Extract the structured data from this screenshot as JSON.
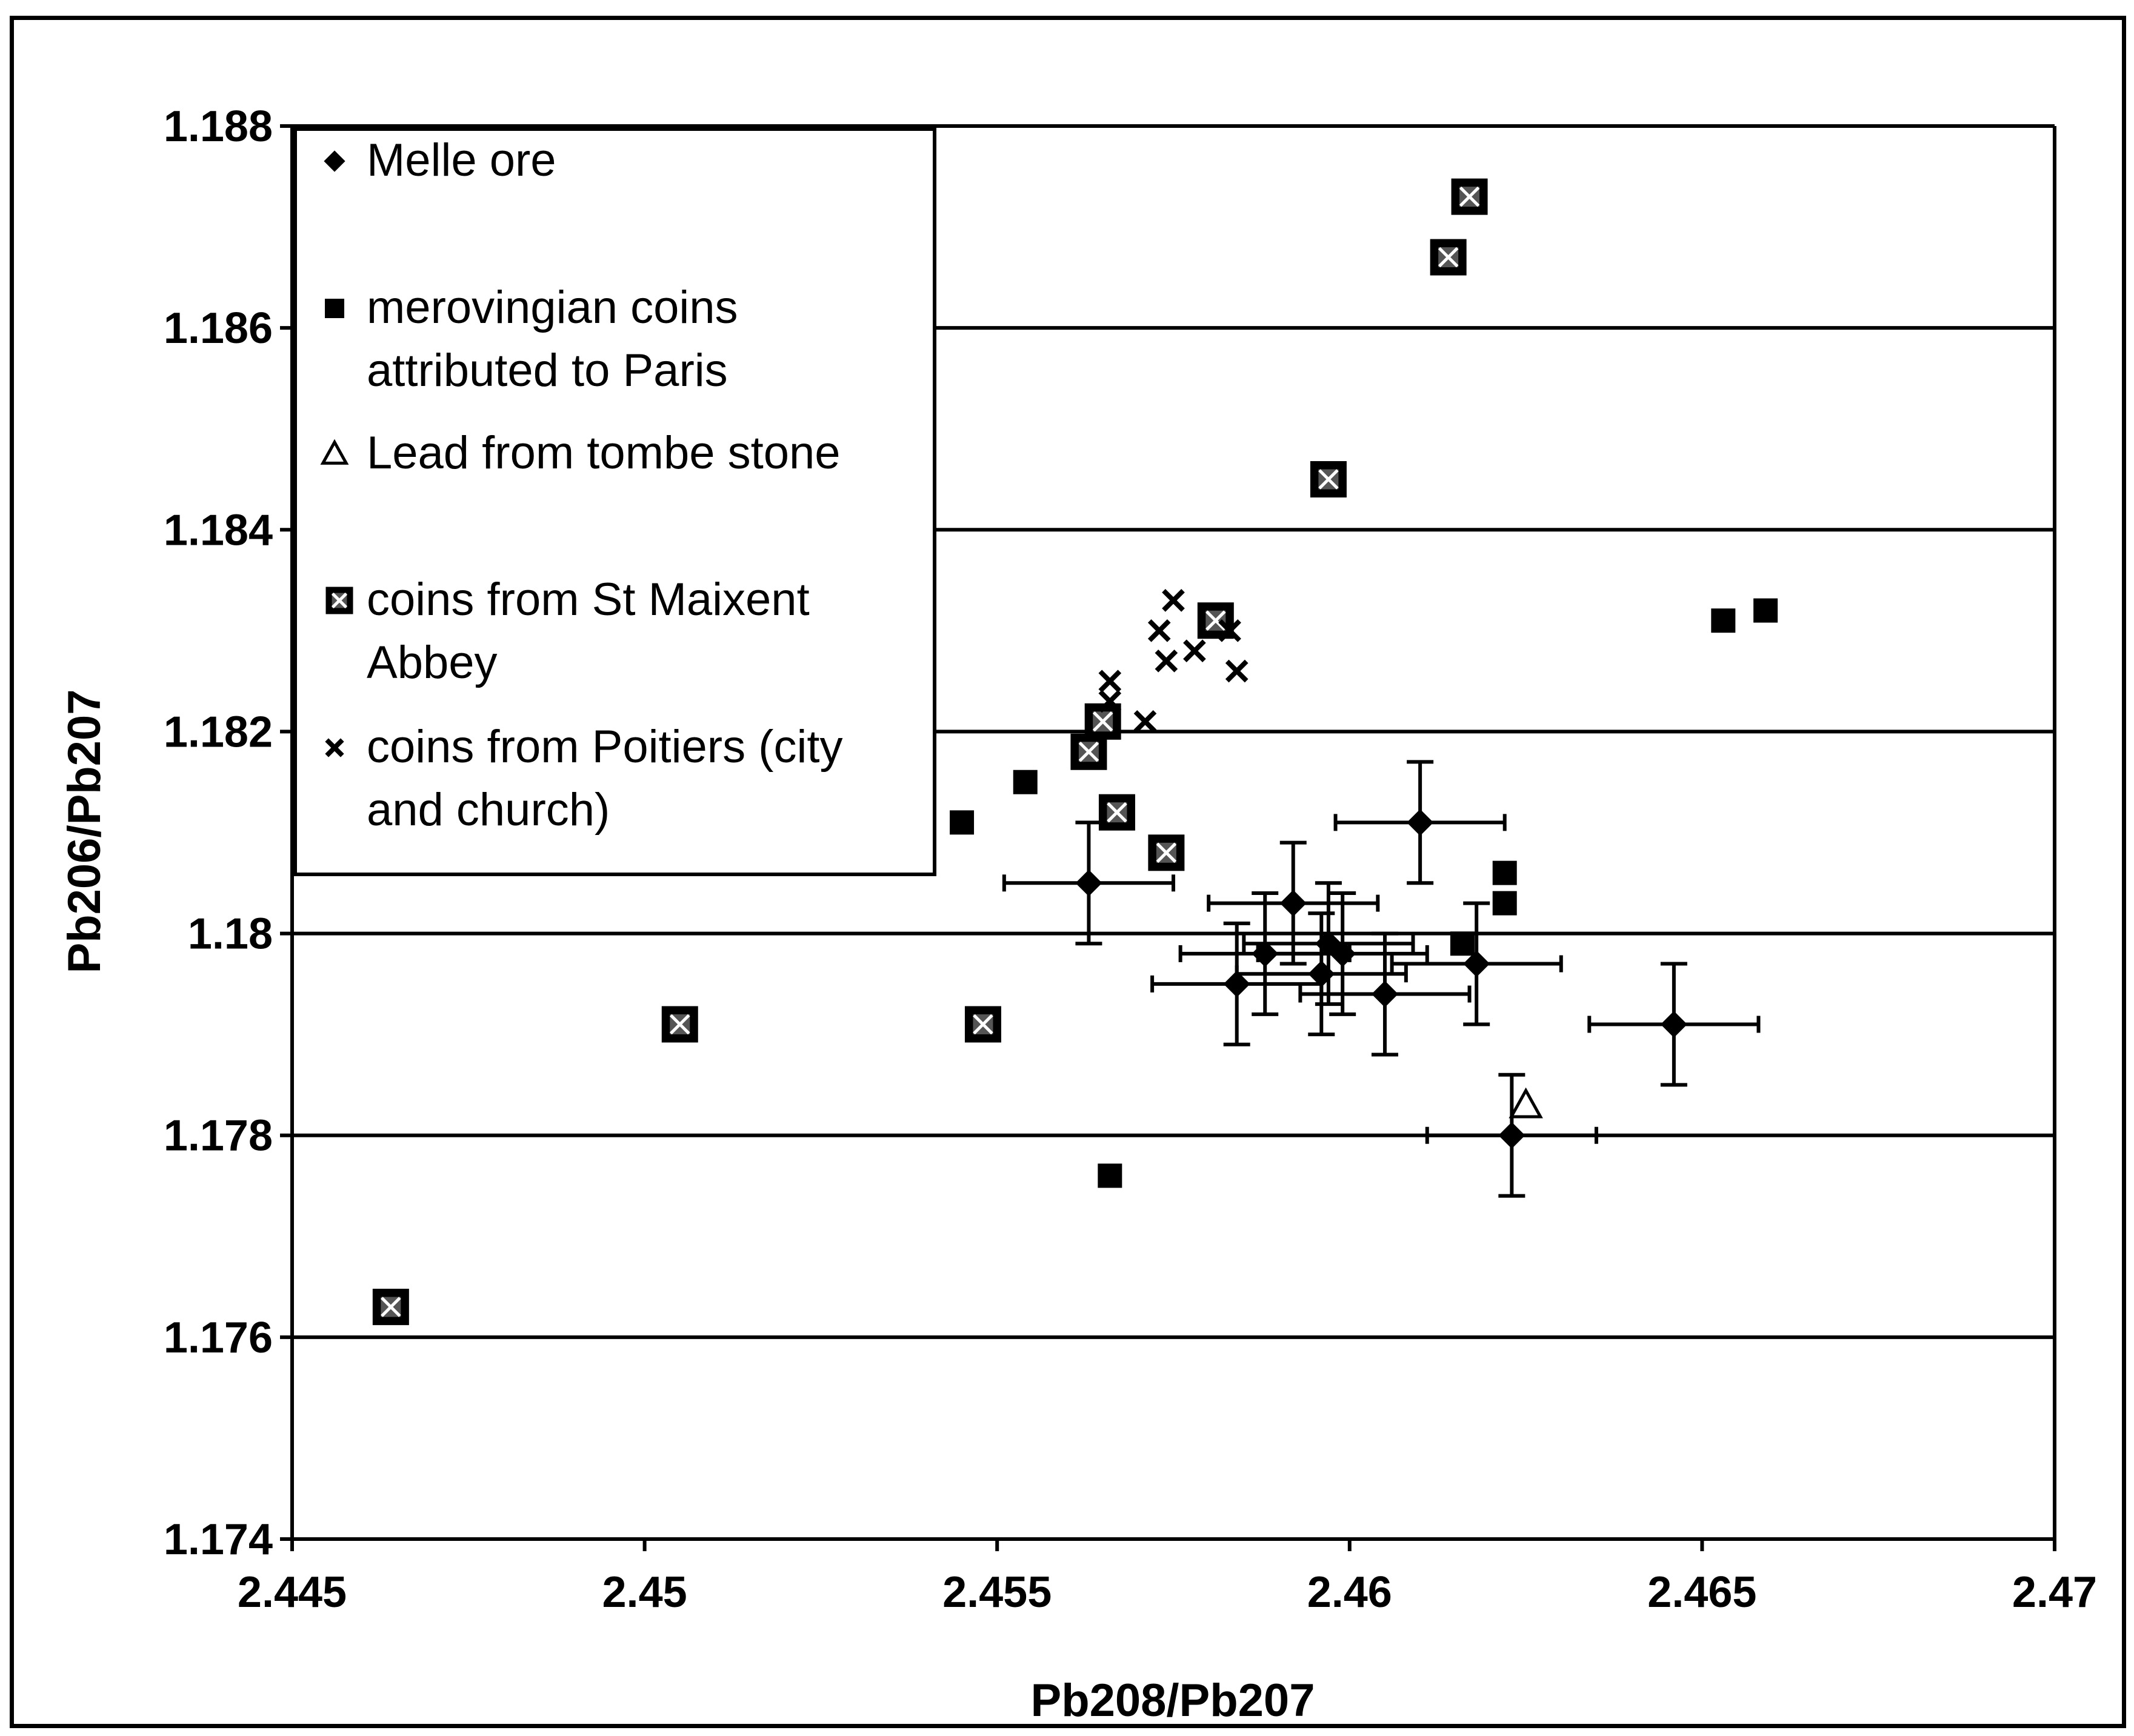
{
  "chart_data": {
    "type": "scatter",
    "xlabel": "Pb208/Pb207",
    "ylabel": "Pb206/Pb207",
    "xlim": [
      2.445,
      2.47
    ],
    "ylim": [
      1.174,
      1.188
    ],
    "x_ticks": [
      "2.445",
      "2.45",
      "2.455",
      "2.46",
      "2.465",
      "2.47"
    ],
    "y_ticks": [
      "1.174",
      "1.176",
      "1.178",
      "1.18",
      "1.182",
      "1.184",
      "1.186",
      "1.188"
    ],
    "grid": "horizontal",
    "legend_position": "top-left",
    "series": [
      {
        "name": "Melle ore",
        "marker": "diamond",
        "points": [
          {
            "x": 2.4563,
            "y": 1.1805,
            "xerr": 0.0012,
            "yerr": 0.0006
          },
          {
            "x": 2.461,
            "y": 1.1811,
            "xerr": 0.0012,
            "yerr": 0.0006
          },
          {
            "x": 2.4592,
            "y": 1.1803,
            "xerr": 0.0012,
            "yerr": 0.0006
          },
          {
            "x": 2.4597,
            "y": 1.1799,
            "xerr": 0.0012,
            "yerr": 0.0006
          },
          {
            "x": 2.4599,
            "y": 1.1798,
            "xerr": 0.0012,
            "yerr": 0.0006
          },
          {
            "x": 2.4588,
            "y": 1.1798,
            "xerr": 0.0012,
            "yerr": 0.0006
          },
          {
            "x": 2.4584,
            "y": 1.1795,
            "xerr": 0.0012,
            "yerr": 0.0006
          },
          {
            "x": 2.4596,
            "y": 1.1796,
            "xerr": 0.0012,
            "yerr": 0.0006
          },
          {
            "x": 2.4605,
            "y": 1.1794,
            "xerr": 0.0012,
            "yerr": 0.0006
          },
          {
            "x": 2.4618,
            "y": 1.1797,
            "xerr": 0.0012,
            "yerr": 0.0006
          },
          {
            "x": 2.4646,
            "y": 1.1791,
            "xerr": 0.0012,
            "yerr": 0.0006
          },
          {
            "x": 2.4623,
            "y": 1.178,
            "xerr": 0.0012,
            "yerr": 0.0006
          }
        ]
      },
      {
        "name": "merovingian coins attributed to Paris",
        "marker": "square",
        "points": [
          {
            "x": 2.4545,
            "y": 1.1811
          },
          {
            "x": 2.4554,
            "y": 1.1815
          },
          {
            "x": 2.4653,
            "y": 1.1831
          },
          {
            "x": 2.4659,
            "y": 1.1832
          },
          {
            "x": 2.4622,
            "y": 1.1806
          },
          {
            "x": 2.4622,
            "y": 1.1803
          },
          {
            "x": 2.4616,
            "y": 1.1799
          },
          {
            "x": 2.4566,
            "y": 1.1776
          }
        ]
      },
      {
        "name": "Lead from tombe stone",
        "marker": "triangle",
        "points": [
          {
            "x": 2.4625,
            "y": 1.1783
          }
        ]
      },
      {
        "name": "coins from St Maixent Abbey",
        "marker": "square-x",
        "points": [
          {
            "x": 2.4617,
            "y": 1.1873
          },
          {
            "x": 2.4614,
            "y": 1.1867
          },
          {
            "x": 2.4597,
            "y": 1.1845
          },
          {
            "x": 2.4581,
            "y": 1.1831
          },
          {
            "x": 2.4563,
            "y": 1.1818
          },
          {
            "x": 2.4565,
            "y": 1.1821
          },
          {
            "x": 2.4567,
            "y": 1.1812
          },
          {
            "x": 2.4574,
            "y": 1.1808
          },
          {
            "x": 2.4505,
            "y": 1.1791
          },
          {
            "x": 2.4548,
            "y": 1.1791
          },
          {
            "x": 2.4464,
            "y": 1.1763
          }
        ]
      },
      {
        "name": "coins from Poitiers (city and church)",
        "marker": "x",
        "points": [
          {
            "x": 2.4575,
            "y": 1.1833
          },
          {
            "x": 2.4573,
            "y": 1.183
          },
          {
            "x": 2.4578,
            "y": 1.1828
          },
          {
            "x": 2.4574,
            "y": 1.1827
          },
          {
            "x": 2.4584,
            "y": 1.1826
          },
          {
            "x": 2.4566,
            "y": 1.1825
          },
          {
            "x": 2.4571,
            "y": 1.1821
          },
          {
            "x": 2.4566,
            "y": 1.1823
          },
          {
            "x": 2.4583,
            "y": 1.183
          }
        ]
      }
    ],
    "legend": [
      {
        "marker": "diamond",
        "lines": [
          "Melle ore"
        ]
      },
      {
        "marker": "square",
        "lines": [
          "merovingian coins",
          "attributed to Paris"
        ]
      },
      {
        "marker": "triangle",
        "lines": [
          "Lead from tombe stone"
        ]
      },
      {
        "marker": "square-x",
        "lines": [
          "coins from St Maixent",
          "Abbey"
        ]
      },
      {
        "marker": "x",
        "lines": [
          "coins from Poitiers (city",
          "and church)"
        ]
      }
    ]
  }
}
